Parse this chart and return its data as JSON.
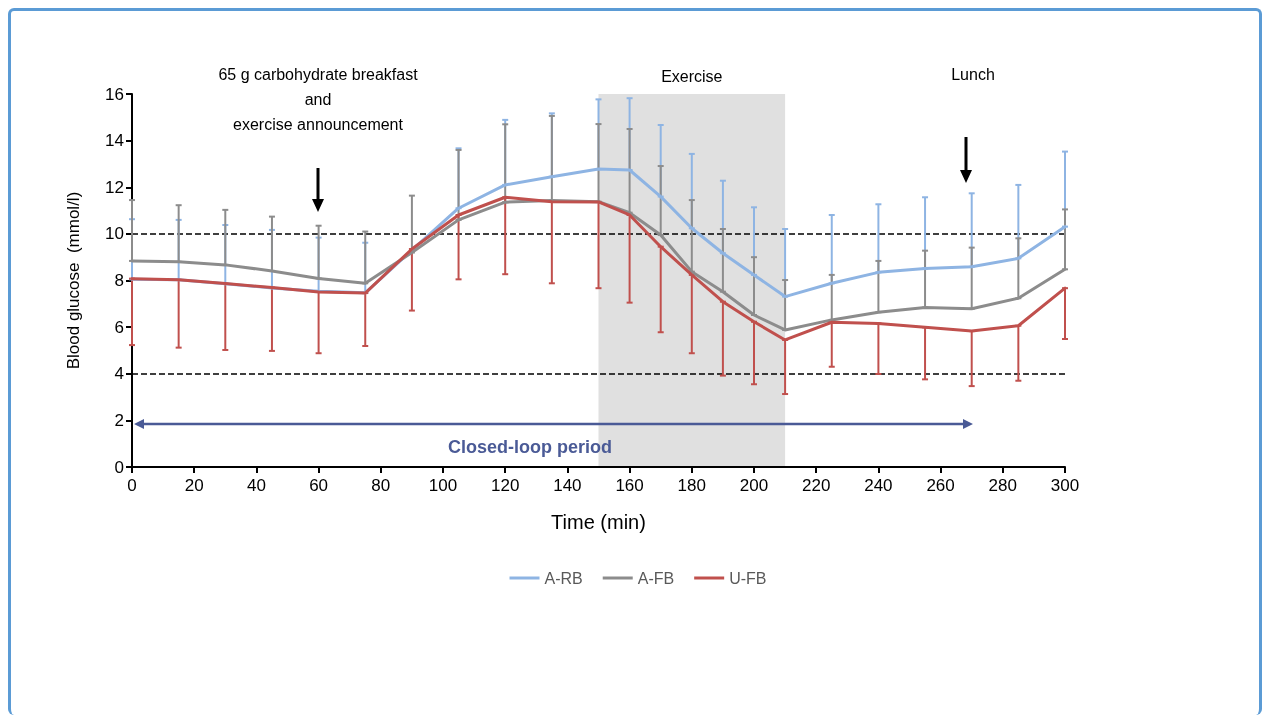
{
  "chart_data": {
    "type": "line",
    "xlabel": "Time (min)",
    "ylabel": "Blood glucose  (mmol/l)",
    "x": [
      0,
      15,
      30,
      45,
      60,
      75,
      90,
      105,
      120,
      135,
      150,
      160,
      170,
      180,
      190,
      200,
      210,
      225,
      240,
      255,
      270,
      285,
      300
    ],
    "series": [
      {
        "name": "A-RB",
        "color": "#8eb4e3",
        "values": [
          8.05,
          8.03,
          7.86,
          7.68,
          7.54,
          7.47,
          9.3,
          11.1,
          12.1,
          12.45,
          12.78,
          12.74,
          11.6,
          10.24,
          9.17,
          8.24,
          7.31,
          7.88,
          8.35,
          8.51,
          8.59,
          8.95,
          10.31
        ],
        "errors": [
          [
            8.05,
            10.63
          ],
          [
            8.03,
            10.6
          ],
          [
            7.86,
            10.38
          ],
          [
            7.68,
            10.17
          ],
          [
            7.54,
            9.84
          ],
          [
            7.47,
            9.62
          ],
          null,
          [
            11.1,
            13.67
          ],
          [
            12.1,
            14.89
          ],
          [
            12.45,
            15.17
          ],
          [
            12.78,
            15.77
          ],
          [
            12.74,
            15.82
          ],
          [
            11.6,
            14.67
          ],
          [
            10.24,
            13.43
          ],
          [
            9.17,
            12.28
          ],
          [
            8.24,
            11.14
          ],
          [
            7.31,
            10.21
          ],
          [
            7.88,
            10.81
          ],
          [
            8.35,
            11.27
          ],
          [
            8.51,
            11.57
          ],
          [
            8.59,
            11.74
          ],
          [
            8.95,
            12.1
          ],
          [
            10.31,
            13.53
          ]
        ]
      },
      {
        "name": "A-FB",
        "color": "#8c8c8c",
        "values": [
          8.84,
          8.8,
          8.67,
          8.41,
          8.09,
          7.88,
          9.2,
          10.6,
          11.36,
          11.43,
          11.38,
          10.91,
          9.95,
          8.38,
          7.52,
          6.52,
          5.88,
          6.31,
          6.64,
          6.84,
          6.79,
          7.24,
          8.48
        ],
        "errors": [
          [
            8.84,
            11.45
          ],
          [
            8.8,
            11.23
          ],
          [
            8.67,
            11.03
          ],
          [
            8.41,
            10.74
          ],
          [
            8.09,
            10.35
          ],
          [
            7.88,
            10.1
          ],
          [
            9.2,
            11.64
          ],
          [
            10.6,
            13.6
          ],
          [
            11.36,
            14.7
          ],
          [
            11.43,
            15.06
          ],
          [
            11.38,
            14.71
          ],
          [
            10.91,
            14.5
          ],
          [
            9.95,
            12.91
          ],
          [
            8.38,
            11.45
          ],
          [
            7.52,
            10.21
          ],
          [
            6.52,
            9.0
          ],
          [
            5.88,
            8.02
          ],
          [
            6.31,
            8.24
          ],
          [
            6.64,
            8.84
          ],
          [
            6.84,
            9.28
          ],
          [
            6.79,
            9.41
          ],
          [
            7.24,
            9.81
          ],
          [
            8.48,
            11.05
          ]
        ]
      },
      {
        "name": "U-FB",
        "color": "#c0504d",
        "values": [
          8.08,
          8.03,
          7.87,
          7.7,
          7.51,
          7.46,
          9.35,
          10.81,
          11.57,
          11.38,
          11.37,
          10.81,
          9.45,
          8.24,
          7.09,
          6.23,
          5.45,
          6.21,
          6.16,
          5.99,
          5.83,
          6.06,
          7.67
        ],
        "errors": [
          [
            5.23,
            8.08
          ],
          [
            5.12,
            8.03
          ],
          [
            5.02,
            7.87
          ],
          [
            4.98,
            7.7
          ],
          [
            4.88,
            7.51
          ],
          [
            5.19,
            7.46
          ],
          [
            6.71,
            9.35
          ],
          [
            8.05,
            10.81
          ],
          [
            8.27,
            11.57
          ],
          [
            7.88,
            11.38
          ],
          [
            7.67,
            11.37
          ],
          [
            7.05,
            10.81
          ],
          [
            5.78,
            9.45
          ],
          [
            4.88,
            8.24
          ],
          [
            3.92,
            7.09
          ],
          [
            3.55,
            6.23
          ],
          [
            3.13,
            5.45
          ],
          [
            4.3,
            6.21
          ],
          [
            3.99,
            6.16
          ],
          [
            3.76,
            5.99
          ],
          [
            3.47,
            5.83
          ],
          [
            3.7,
            6.06
          ],
          [
            5.49,
            7.67
          ]
        ]
      }
    ],
    "xlim": [
      0,
      300
    ],
    "xticks": [
      0,
      20,
      40,
      60,
      80,
      100,
      120,
      140,
      160,
      180,
      200,
      220,
      240,
      260,
      280,
      300
    ],
    "ylim": [
      0,
      16
    ],
    "yticks": [
      0,
      2,
      4,
      6,
      8,
      10,
      12,
      14,
      16
    ],
    "ref_lines": [
      {
        "axis": "y",
        "value": 10,
        "label": null,
        "color": "#000000",
        "line_style": "dashed"
      },
      {
        "axis": "y",
        "value": 4,
        "label": null,
        "color": "#000000",
        "line_style": "dashed"
      }
    ],
    "bands": [
      {
        "axis": "x",
        "from": 150,
        "to": 210,
        "label": "Exercise",
        "color": "#e0e0e0"
      }
    ],
    "annotations": [
      "65 g carbohydrate breakfast\nand\nexercise announcement",
      "Lunch",
      "Closed-loop period"
    ],
    "legend": "bottom",
    "grid": false,
    "marker": "none",
    "line_style": "solid"
  }
}
